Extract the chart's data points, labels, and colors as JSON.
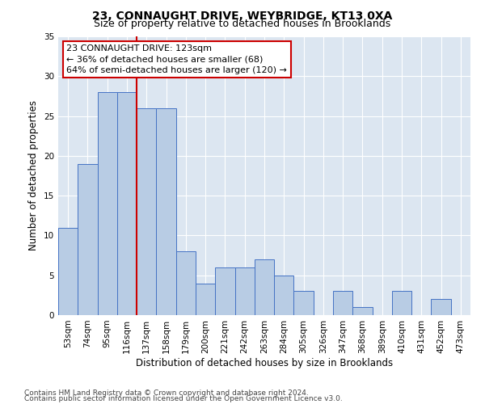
{
  "title": "23, CONNAUGHT DRIVE, WEYBRIDGE, KT13 0XA",
  "subtitle": "Size of property relative to detached houses in Brooklands",
  "xlabel": "Distribution of detached houses by size in Brooklands",
  "ylabel": "Number of detached properties",
  "footnote1": "Contains HM Land Registry data © Crown copyright and database right 2024.",
  "footnote2": "Contains public sector information licensed under the Open Government Licence v3.0.",
  "categories": [
    "53sqm",
    "74sqm",
    "95sqm",
    "116sqm",
    "137sqm",
    "158sqm",
    "179sqm",
    "200sqm",
    "221sqm",
    "242sqm",
    "263sqm",
    "284sqm",
    "305sqm",
    "326sqm",
    "347sqm",
    "368sqm",
    "389sqm",
    "410sqm",
    "431sqm",
    "452sqm",
    "473sqm"
  ],
  "values": [
    11,
    19,
    28,
    28,
    26,
    26,
    8,
    4,
    6,
    6,
    7,
    5,
    3,
    0,
    3,
    1,
    0,
    3,
    0,
    2,
    0
  ],
  "bar_color": "#b8cce4",
  "bar_edge_color": "#4472c4",
  "property_line_x": 3.5,
  "annotation_line1": "23 CONNAUGHT DRIVE: 123sqm",
  "annotation_line2": "← 36% of detached houses are smaller (68)",
  "annotation_line3": "64% of semi-detached houses are larger (120) →",
  "annotation_box_facecolor": "#ffffff",
  "annotation_box_edgecolor": "#cc0000",
  "property_line_color": "#cc0000",
  "ylim": [
    0,
    35
  ],
  "yticks": [
    0,
    5,
    10,
    15,
    20,
    25,
    30,
    35
  ],
  "plot_bg_color": "#dce6f1",
  "grid_color": "#ffffff",
  "title_fontsize": 10,
  "subtitle_fontsize": 9,
  "axis_label_fontsize": 8.5,
  "tick_fontsize": 7.5,
  "annotation_fontsize": 8,
  "footnote_fontsize": 6.5
}
